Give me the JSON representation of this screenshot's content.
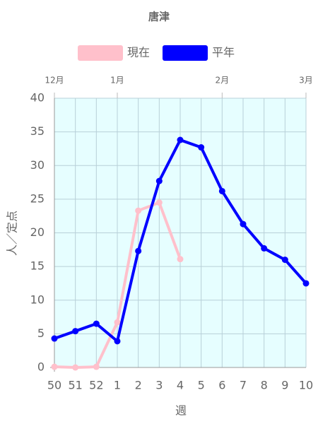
{
  "chart_data": {
    "type": "line",
    "title": "唐津",
    "x_label": "週",
    "y_label": "人／定点",
    "categories": [
      "50",
      "51",
      "52",
      "1",
      "2",
      "3",
      "4",
      "5",
      "6",
      "7",
      "8",
      "9",
      "10"
    ],
    "x2ticks": [
      {
        "value": 0,
        "label": "12月"
      },
      {
        "value": 3,
        "label": "1月"
      },
      {
        "value": 8,
        "label": "2月"
      },
      {
        "value": 12,
        "label": "3月"
      }
    ],
    "series": [
      {
        "name": "現在",
        "color": "#ffc0cb",
        "values": [
          0.1,
          0,
          0.1,
          6.7,
          23.3,
          24.5,
          16.1,
          null,
          null,
          null,
          null,
          null,
          null
        ]
      },
      {
        "name": "平年",
        "color": "#0000ff",
        "values": [
          4.3,
          5.4,
          6.5,
          3.9,
          17.3,
          27.7,
          33.8,
          32.7,
          26.2,
          21.3,
          17.7,
          16.0,
          12.5
        ]
      }
    ],
    "ylim": [
      0,
      40
    ],
    "yticks": [
      0,
      5,
      10,
      15,
      20,
      25,
      30,
      35,
      40
    ],
    "grid": true,
    "background": "#e6feff"
  }
}
